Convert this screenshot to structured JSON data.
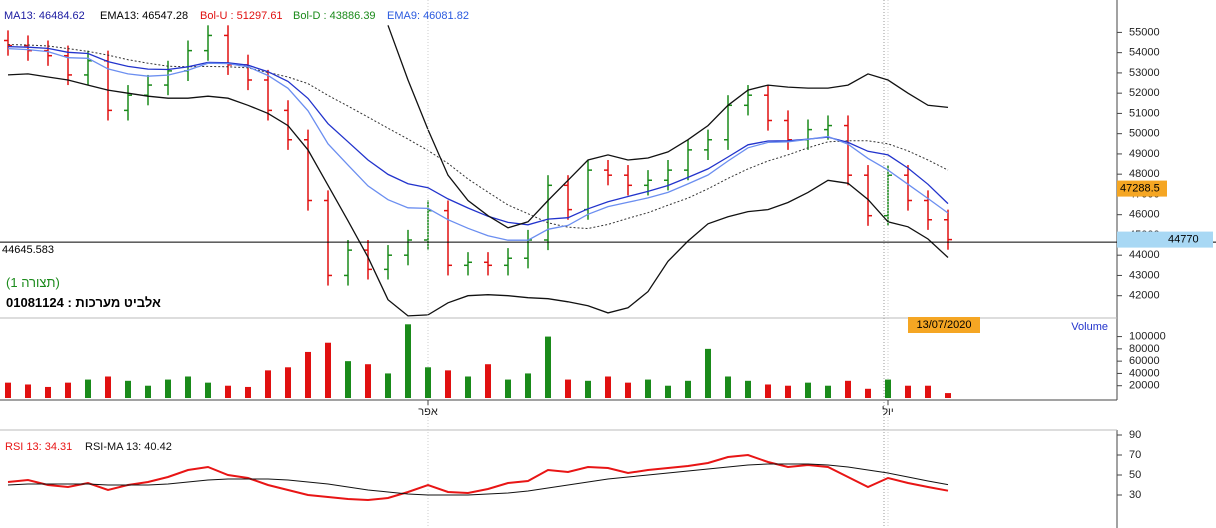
{
  "chart_data": [
    {
      "type": "ohlc",
      "categories": [
        null,
        null,
        null,
        null,
        null,
        null,
        null,
        null,
        null,
        null,
        null,
        null,
        null,
        null,
        null,
        null,
        null,
        null,
        null,
        null,
        null,
        "אפר",
        null,
        null,
        null,
        null,
        null,
        null,
        null,
        null,
        null,
        null,
        null,
        null,
        null,
        null,
        null,
        null,
        null,
        null,
        null,
        null,
        null,
        null,
        "יול",
        null,
        null,
        null
      ],
      "open": [
        54600,
        54350,
        54100,
        53850,
        52900,
        53600,
        51150,
        51900,
        52400,
        53100,
        54100,
        54850,
        53400,
        52650,
        51150,
        49700,
        46700,
        43000,
        44250,
        43300,
        44000,
        44750,
        46200,
        43500,
        43650,
        43500,
        43850,
        44750,
        47450,
        46250,
        48200,
        47950,
        47450,
        47700,
        48200,
        49200,
        49700,
        51400,
        51900,
        50650,
        49700,
        50200,
        50400,
        47950,
        45950,
        47950,
        46700,
        45750
      ],
      "high": [
        55100,
        54850,
        54600,
        54350,
        54100,
        54100,
        52400,
        52900,
        53600,
        54600,
        55350,
        55350,
        53900,
        53150,
        51650,
        50200,
        47200,
        44750,
        44750,
        44500,
        45250,
        46700,
        46700,
        44150,
        44150,
        44350,
        45250,
        47950,
        47950,
        48700,
        48700,
        48450,
        48200,
        48700,
        49700,
        50200,
        51900,
        52400,
        52400,
        51150,
        50700,
        50900,
        50900,
        48450,
        48450,
        48450,
        47200,
        46250
      ],
      "low": [
        53850,
        53600,
        53350,
        52400,
        52400,
        50650,
        50650,
        51400,
        51900,
        52600,
        53600,
        52900,
        52150,
        50650,
        49200,
        46200,
        42500,
        42500,
        42800,
        42800,
        43500,
        44250,
        43000,
        43000,
        43000,
        43000,
        43350,
        44250,
        45750,
        45750,
        47450,
        46950,
        46950,
        47200,
        47700,
        48700,
        49200,
        50900,
        50150,
        49200,
        49200,
        49700,
        47450,
        45450,
        45450,
        46200,
        45250,
        44270
      ],
      "close": [
        54350,
        54100,
        53850,
        52900,
        53600,
        51150,
        51900,
        52400,
        53100,
        54100,
        54850,
        53400,
        52650,
        51150,
        49700,
        46700,
        43000,
        44250,
        43300,
        44000,
        44750,
        46200,
        43500,
        43650,
        43500,
        43850,
        44750,
        47450,
        46250,
        48200,
        47950,
        47450,
        47700,
        48200,
        49200,
        49700,
        51400,
        51900,
        50650,
        49700,
        50200,
        50400,
        47950,
        45950,
        47950,
        46700,
        45750,
        44770
      ],
      "up_color": "#1a8a1a",
      "down_color": "#e01010",
      "lines": [
        {
          "name": "MA13: 46484.62",
          "color": "#1a1aa0",
          "line_color": "#333333",
          "dash": true,
          "values": [
            54400,
            54380,
            54330,
            54200,
            54060,
            53880,
            53650,
            53480,
            53330,
            53300,
            53320,
            53300,
            53250,
            53020,
            52800,
            52470,
            51890,
            51360,
            50820,
            50270,
            49730,
            49170,
            48530,
            47760,
            47110,
            46480,
            46050,
            45600,
            45380,
            45320,
            45520,
            45820,
            46100,
            46470,
            46820,
            47280,
            47790,
            48260,
            48650,
            48950,
            49300,
            49600,
            49650,
            49650,
            49500,
            49150,
            48700,
            48200
          ]
        },
        {
          "name": "EMA13: 46547.28",
          "color": "#000000",
          "line_color": "#2233cc",
          "dash": false,
          "values": [
            54300,
            54270,
            54210,
            54020,
            53960,
            53560,
            53320,
            53190,
            53170,
            53300,
            53520,
            53500,
            53380,
            53060,
            52580,
            51740,
            50490,
            49600,
            48700,
            47990,
            47530,
            47330,
            46780,
            46330,
            45920,
            45620,
            45500,
            45780,
            45850,
            46290,
            46640,
            46900,
            47150,
            47440,
            47840,
            48260,
            48850,
            49450,
            49640,
            49650,
            49730,
            49830,
            49570,
            49130,
            48950,
            48300,
            47500,
            46547
          ]
        },
        {
          "name": "Bol-U : 51297.61",
          "color": "#e01010",
          "line_color": "#111111",
          "dash": false,
          "values": [
            null,
            null,
            null,
            null,
            null,
            null,
            null,
            null,
            null,
            null,
            null,
            null,
            null,
            null,
            null,
            null,
            null,
            null,
            null,
            55350,
            52650,
            50200,
            47950,
            46700,
            45950,
            45350,
            45650,
            46700,
            47700,
            48700,
            48950,
            48700,
            48800,
            49100,
            49700,
            50400,
            51400,
            52150,
            52400,
            52300,
            52250,
            52250,
            52400,
            52950,
            52650,
            52000,
            51400,
            51298
          ]
        },
        {
          "name": "Bol-D : 43886.39",
          "color": "#1a8a1a",
          "line_color": "#111111",
          "dash": false,
          "values": [
            52900,
            52950,
            52800,
            52650,
            52400,
            52150,
            52000,
            51850,
            51750,
            51750,
            51850,
            51750,
            51400,
            51000,
            50400,
            49200,
            47450,
            45700,
            43900,
            41800,
            41000,
            41050,
            41650,
            42000,
            42050,
            42000,
            41900,
            41850,
            41700,
            41500,
            41150,
            41400,
            42200,
            43700,
            44700,
            45550,
            45900,
            46150,
            46250,
            46600,
            47100,
            47700,
            47550,
            46750,
            45650,
            45400,
            44800,
            43886
          ]
        },
        {
          "name": "EMA9: 46081.82",
          "color": "#2a5adf",
          "line_color": "#6b8ef0",
          "dash": false,
          "values": [
            54200,
            54150,
            54050,
            53750,
            53720,
            53200,
            52950,
            52840,
            52890,
            53130,
            53480,
            53460,
            53300,
            52870,
            52240,
            51130,
            49500,
            48450,
            47420,
            46740,
            46340,
            46310,
            45750,
            45330,
            44960,
            44740,
            44740,
            45280,
            45470,
            46020,
            46400,
            46610,
            46830,
            47100,
            47520,
            47960,
            48650,
            49300,
            49570,
            49600,
            49720,
            49860,
            49480,
            48780,
            48200,
            47500,
            46800,
            46082
          ]
        }
      ],
      "ylim": [
        40800,
        56600
      ],
      "yticks": [
        42000,
        43000,
        44000,
        45000,
        46000,
        47000,
        48000,
        49000,
        50000,
        51000,
        52000,
        53000,
        54000,
        55000
      ],
      "crosshair_price": 44645.583,
      "last_price": 44770,
      "marker_price": 47288.5,
      "cursor_date": "13/07/2020",
      "layout_name": "(תצורה 1)",
      "security": "אלביט מערכות : 01081124"
    },
    {
      "type": "bar",
      "title": "Volume",
      "values": [
        25000,
        22000,
        18000,
        25000,
        30000,
        35000,
        28000,
        20000,
        30000,
        35000,
        25000,
        20000,
        18000,
        45000,
        50000,
        75000,
        90000,
        60000,
        55000,
        40000,
        120000,
        50000,
        45000,
        35000,
        55000,
        30000,
        40000,
        100000,
        30000,
        28000,
        35000,
        25000,
        30000,
        20000,
        28000,
        80000,
        35000,
        28000,
        22000,
        20000,
        25000,
        20000,
        28000,
        15000,
        30000,
        20000,
        20000,
        8000
      ],
      "ylim": [
        0,
        127000
      ],
      "yticks": [
        20000,
        40000,
        60000,
        80000,
        100000
      ]
    },
    {
      "type": "line",
      "series": [
        {
          "name": "RSI 13: 34.31",
          "color": "#e81515",
          "values": [
            43,
            45,
            40,
            38,
            42,
            35,
            40,
            43,
            48,
            55,
            58,
            50,
            47,
            40,
            35,
            30,
            28,
            26,
            25,
            27,
            33,
            40,
            33,
            32,
            36,
            42,
            44,
            55,
            53,
            58,
            57,
            52,
            55,
            57,
            59,
            62,
            68,
            70,
            63,
            58,
            60,
            58,
            48,
            38,
            47,
            42,
            38,
            34.31
          ]
        },
        {
          "name": "RSI-MA 13: 40.42",
          "color": "#111111",
          "values": [
            40,
            41,
            41,
            41,
            41,
            40,
            40,
            40,
            41,
            43,
            45,
            46,
            46,
            46,
            45,
            43,
            41,
            38,
            35,
            33,
            31,
            30,
            30,
            30,
            31,
            32,
            34,
            37,
            40,
            43,
            46,
            48,
            50,
            52,
            54,
            56,
            58,
            60,
            61,
            61,
            61,
            60,
            58,
            55,
            52,
            48,
            44,
            40.42
          ]
        }
      ],
      "ylim": [
        5,
        95
      ],
      "yticks": [
        30,
        50,
        70,
        90
      ]
    }
  ]
}
